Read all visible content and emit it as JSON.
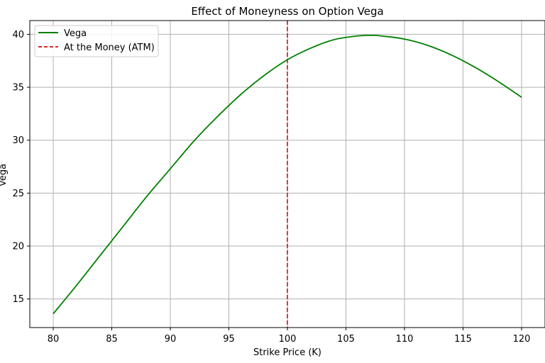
{
  "chart_data": {
    "type": "line",
    "title": "Effect of Moneyness on Option Vega",
    "xlabel": "Strike Price (K)",
    "ylabel": "Vega",
    "xlim": [
      78,
      122
    ],
    "ylim": [
      12.3,
      41.3
    ],
    "x_ticks": [
      80,
      85,
      90,
      95,
      100,
      105,
      110,
      115,
      120
    ],
    "y_ticks": [
      15,
      20,
      25,
      30,
      35,
      40
    ],
    "grid": true,
    "legend_position": "top-left",
    "series": [
      {
        "name": "Vega",
        "color": "#008000",
        "x": [
          80,
          82,
          84,
          86,
          88,
          90,
          92,
          94,
          96,
          98,
          100,
          102,
          104,
          106,
          107.3,
          108,
          110,
          112,
          114,
          116,
          118,
          120
        ],
        "y": [
          13.6,
          16.3,
          19.1,
          21.9,
          24.7,
          27.3,
          29.9,
          32.2,
          34.3,
          36.1,
          37.6,
          38.7,
          39.5,
          39.85,
          39.9,
          39.85,
          39.55,
          38.95,
          38.05,
          36.9,
          35.55,
          34.05
        ]
      }
    ],
    "vlines": [
      {
        "name": "At the Money (ATM)",
        "x": 100,
        "color": "#d62728",
        "style": "dashed"
      }
    ]
  }
}
